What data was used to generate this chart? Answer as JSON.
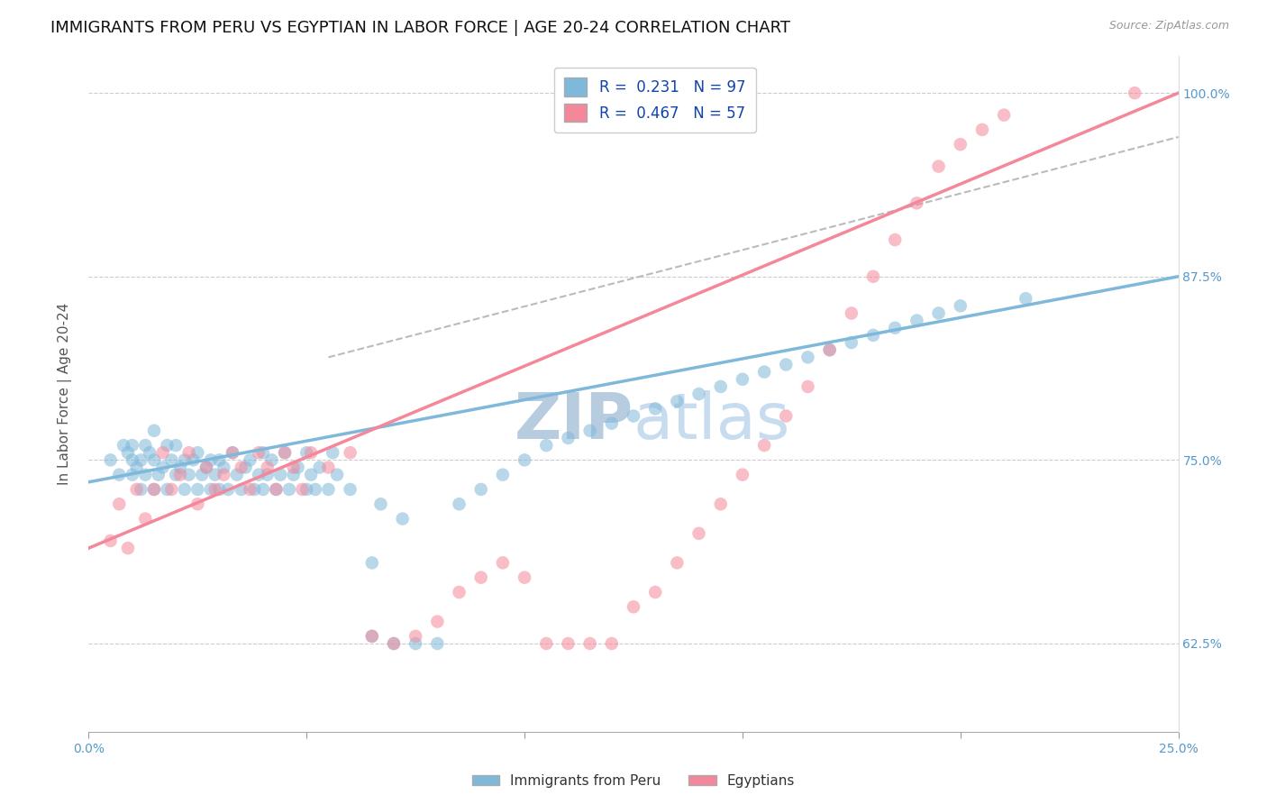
{
  "title": "IMMIGRANTS FROM PERU VS EGYPTIAN IN LABOR FORCE | AGE 20-24 CORRELATION CHART",
  "source": "Source: ZipAtlas.com",
  "xlabel_ticks": [
    "0.0%",
    "25.0%"
  ],
  "ylabel_ticks": [
    "62.5%",
    "75.0%",
    "87.5%",
    "100.0%"
  ],
  "ylabel_label": "In Labor Force | Age 20-24",
  "legend_entries": [
    {
      "label": "R =  0.231   N = 97",
      "color": "#a8c8e8"
    },
    {
      "label": "R =  0.467   N = 57",
      "color": "#f4a8bc"
    }
  ],
  "legend_bottom": [
    "Immigrants from Peru",
    "Egyptians"
  ],
  "watermark": "ZIPatlas",
  "xlim": [
    0.0,
    0.25
  ],
  "ylim": [
    0.565,
    1.025
  ],
  "yticks": [
    0.625,
    0.75,
    0.875,
    1.0
  ],
  "xticks": [
    0.0,
    0.05,
    0.1,
    0.15,
    0.2,
    0.25
  ],
  "xtick_labels_show": [
    "0.0%",
    "",
    "",
    "",
    "",
    "25.0%"
  ],
  "blue_scatter_x": [
    0.005,
    0.007,
    0.008,
    0.009,
    0.01,
    0.01,
    0.01,
    0.011,
    0.012,
    0.012,
    0.013,
    0.013,
    0.014,
    0.015,
    0.015,
    0.015,
    0.016,
    0.017,
    0.018,
    0.018,
    0.019,
    0.02,
    0.02,
    0.021,
    0.022,
    0.022,
    0.023,
    0.024,
    0.025,
    0.025,
    0.026,
    0.027,
    0.028,
    0.028,
    0.029,
    0.03,
    0.03,
    0.031,
    0.032,
    0.033,
    0.034,
    0.035,
    0.036,
    0.037,
    0.038,
    0.039,
    0.04,
    0.04,
    0.041,
    0.042,
    0.043,
    0.044,
    0.045,
    0.046,
    0.047,
    0.048,
    0.05,
    0.05,
    0.051,
    0.052,
    0.053,
    0.055,
    0.056,
    0.057,
    0.06,
    0.065,
    0.065,
    0.067,
    0.07,
    0.072,
    0.075,
    0.08,
    0.085,
    0.09,
    0.095,
    0.1,
    0.105,
    0.11,
    0.115,
    0.12,
    0.125,
    0.13,
    0.135,
    0.14,
    0.145,
    0.15,
    0.155,
    0.16,
    0.165,
    0.17,
    0.175,
    0.18,
    0.185,
    0.19,
    0.195,
    0.2,
    0.215
  ],
  "blue_scatter_y": [
    0.75,
    0.74,
    0.76,
    0.755,
    0.74,
    0.75,
    0.76,
    0.745,
    0.75,
    0.73,
    0.74,
    0.76,
    0.755,
    0.73,
    0.75,
    0.77,
    0.74,
    0.745,
    0.73,
    0.76,
    0.75,
    0.74,
    0.76,
    0.745,
    0.73,
    0.75,
    0.74,
    0.75,
    0.73,
    0.755,
    0.74,
    0.745,
    0.73,
    0.75,
    0.74,
    0.73,
    0.75,
    0.745,
    0.73,
    0.755,
    0.74,
    0.73,
    0.745,
    0.75,
    0.73,
    0.74,
    0.73,
    0.755,
    0.74,
    0.75,
    0.73,
    0.74,
    0.755,
    0.73,
    0.74,
    0.745,
    0.73,
    0.755,
    0.74,
    0.73,
    0.745,
    0.73,
    0.755,
    0.74,
    0.73,
    0.68,
    0.63,
    0.72,
    0.625,
    0.71,
    0.625,
    0.625,
    0.72,
    0.73,
    0.74,
    0.75,
    0.76,
    0.765,
    0.77,
    0.775,
    0.78,
    0.785,
    0.79,
    0.795,
    0.8,
    0.805,
    0.81,
    0.815,
    0.82,
    0.825,
    0.83,
    0.835,
    0.84,
    0.845,
    0.85,
    0.855,
    0.86
  ],
  "pink_scatter_x": [
    0.005,
    0.007,
    0.009,
    0.011,
    0.013,
    0.015,
    0.017,
    0.019,
    0.021,
    0.023,
    0.025,
    0.027,
    0.029,
    0.031,
    0.033,
    0.035,
    0.037,
    0.039,
    0.041,
    0.043,
    0.045,
    0.047,
    0.049,
    0.051,
    0.055,
    0.06,
    0.065,
    0.07,
    0.075,
    0.08,
    0.085,
    0.09,
    0.095,
    0.1,
    0.105,
    0.11,
    0.115,
    0.12,
    0.125,
    0.13,
    0.135,
    0.14,
    0.145,
    0.15,
    0.155,
    0.16,
    0.165,
    0.17,
    0.175,
    0.18,
    0.185,
    0.19,
    0.195,
    0.2,
    0.205,
    0.21,
    0.24
  ],
  "pink_scatter_y": [
    0.695,
    0.72,
    0.69,
    0.73,
    0.71,
    0.73,
    0.755,
    0.73,
    0.74,
    0.755,
    0.72,
    0.745,
    0.73,
    0.74,
    0.755,
    0.745,
    0.73,
    0.755,
    0.745,
    0.73,
    0.755,
    0.745,
    0.73,
    0.755,
    0.745,
    0.755,
    0.63,
    0.625,
    0.63,
    0.64,
    0.66,
    0.67,
    0.68,
    0.67,
    0.625,
    0.625,
    0.625,
    0.625,
    0.65,
    0.66,
    0.68,
    0.7,
    0.72,
    0.74,
    0.76,
    0.78,
    0.8,
    0.825,
    0.85,
    0.875,
    0.9,
    0.925,
    0.95,
    0.965,
    0.975,
    0.985,
    1.0
  ],
  "blue_line_x": [
    0.0,
    0.25
  ],
  "blue_line_y": [
    0.735,
    0.875
  ],
  "pink_line_x": [
    0.0,
    0.25
  ],
  "pink_line_y": [
    0.69,
    1.0
  ],
  "dashed_line_x": [
    0.055,
    0.25
  ],
  "dashed_line_y": [
    0.82,
    0.97
  ],
  "blue_color": "#7EB8DA",
  "pink_color": "#F4889A",
  "dashed_color": "#BBBBBB",
  "title_fontsize": 13,
  "axis_label_fontsize": 11,
  "tick_fontsize": 10,
  "watermark_color": "#C8D8EC",
  "watermark_fontsize": 52,
  "scatter_size": 110,
  "scatter_alpha": 0.55
}
